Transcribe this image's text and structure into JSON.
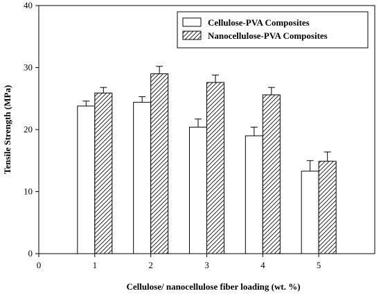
{
  "chart_data": {
    "type": "bar",
    "categories": [
      "1",
      "2",
      "3",
      "4",
      "5"
    ],
    "series": [
      {
        "name": "Cellulose-PVA Composites",
        "values": [
          23.8,
          24.4,
          20.4,
          19.0,
          13.3
        ],
        "errors": [
          0.8,
          0.9,
          1.3,
          1.4,
          1.7
        ],
        "fill": "plain"
      },
      {
        "name": "Nanocellulose-PVA Composites",
        "values": [
          25.9,
          29.0,
          27.6,
          25.6,
          14.9
        ],
        "errors": [
          0.9,
          1.2,
          1.2,
          1.2,
          1.5
        ],
        "fill": "hatched"
      }
    ],
    "xlabel": "Cellulose/ nanocellulose fiber loading (wt. %)",
    "ylabel": "Tensile Strength (MPa)",
    "xlim": [
      0,
      6
    ],
    "ylim": [
      0,
      40
    ],
    "xticks": [
      "0",
      "1",
      "2",
      "3",
      "4",
      "5"
    ],
    "yticks": [
      "0",
      "10",
      "20",
      "30",
      "40"
    ],
    "legend": "top-right",
    "grid": false,
    "colors": {
      "bar_fill": "#ffffff",
      "stroke": "#000000"
    }
  }
}
